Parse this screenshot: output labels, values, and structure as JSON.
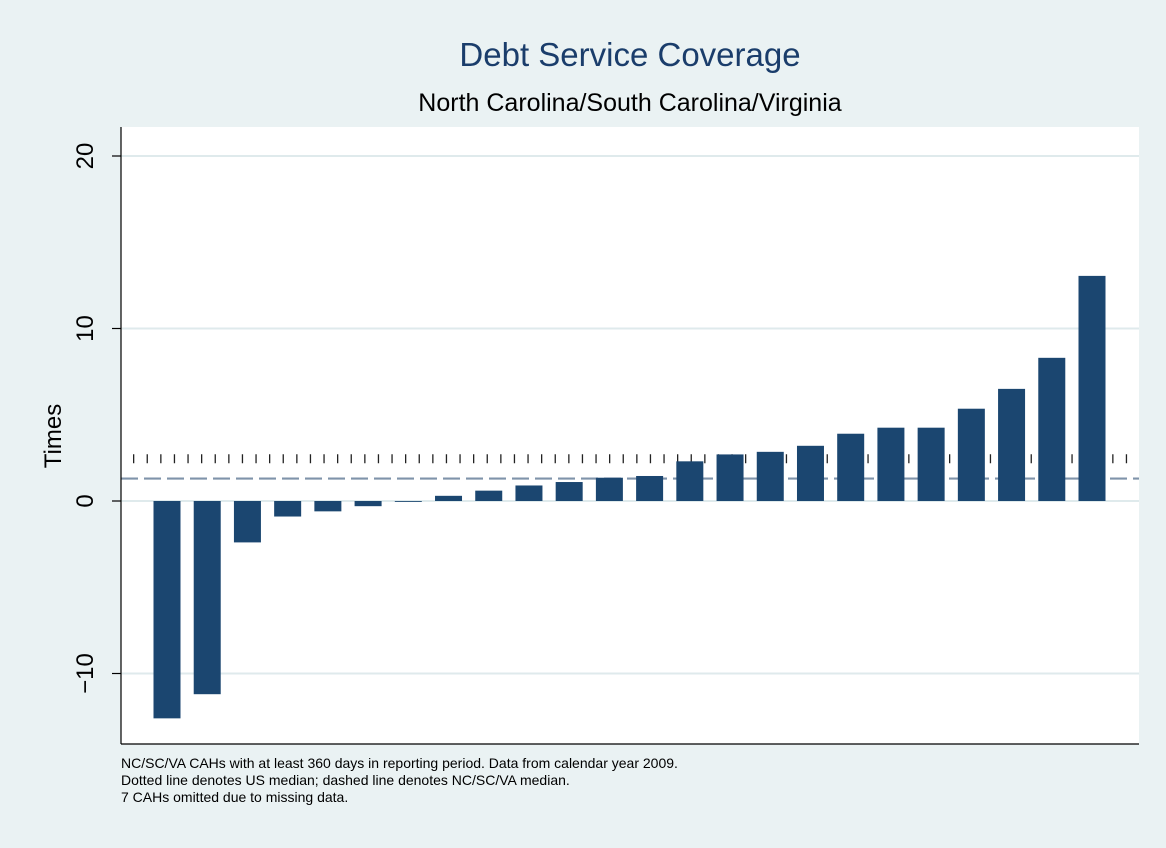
{
  "chart_data": {
    "type": "bar",
    "title": "Debt Service Coverage",
    "subtitle": "North Carolina/South Carolina/Virginia",
    "ylabel": "Times",
    "xlabel": "",
    "ylim": [
      -14,
      21
    ],
    "yticks": [
      -10,
      0,
      10,
      20
    ],
    "ytick_labels": [
      "−10",
      "0",
      "10",
      "20"
    ],
    "grid": true,
    "values": [
      -12.6,
      -11.2,
      -2.4,
      -0.9,
      -0.6,
      -0.3,
      -0.05,
      0.3,
      0.6,
      0.9,
      1.1,
      1.35,
      1.45,
      2.3,
      2.7,
      2.85,
      3.2,
      3.9,
      4.25,
      4.25,
      5.35,
      6.5,
      8.3,
      13.05
    ],
    "reference_lines": [
      {
        "label": "US median",
        "style": "dotted",
        "value": 2.45
      },
      {
        "label": "NC/SC/VA median",
        "style": "dashed",
        "value": 1.3
      }
    ],
    "colors": {
      "bar": "#1b4670",
      "background": "#eaf2f3",
      "plot_background": "#ffffff",
      "grid": "#dfeaec",
      "title": "#1a3d6b",
      "dotted_line": "#222222",
      "dashed_line": "#7f93aa"
    }
  },
  "notes": [
    "NC/SC/VA CAHs with at least 360 days in reporting period. Data from calendar year 2009.",
    "Dotted line denotes US median; dashed line denotes NC/SC/VA median.",
    "7 CAHs omitted due to missing data."
  ]
}
